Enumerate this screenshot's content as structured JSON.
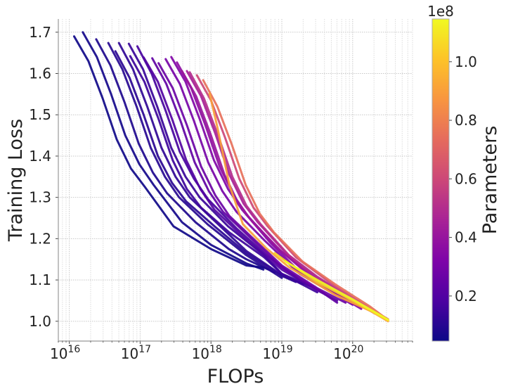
{
  "chart_data": {
    "type": "line",
    "title": "",
    "xlabel": "FLOPs",
    "ylabel": "Training Loss",
    "xscale": "log",
    "xlim": [
      7000000000000000.0,
      7e+20
    ],
    "ylim": [
      0.952,
      1.732
    ],
    "grid": true,
    "x_ticks": [
      {
        "value": 1e+16,
        "base": "10",
        "exp": "16"
      },
      {
        "value": 1e+17,
        "base": "10",
        "exp": "17"
      },
      {
        "value": 1e+18,
        "base": "10",
        "exp": "18"
      },
      {
        "value": 1e+19,
        "base": "10",
        "exp": "19"
      },
      {
        "value": 1e+20,
        "base": "10",
        "exp": "20"
      }
    ],
    "y_ticks": [
      "1.0",
      "1.1",
      "1.2",
      "1.3",
      "1.4",
      "1.5",
      "1.6",
      "1.7"
    ],
    "colorbar": {
      "label": "Parameters",
      "colormap": "plasma",
      "offset_text": "1e8",
      "range": [
        0.046,
        1.146
      ],
      "ticks": [
        "0.2",
        "0.4",
        "0.6",
        "0.8",
        "1.0"
      ],
      "colors": [
        "#0d0887",
        "#4c02a1",
        "#7e03a8",
        "#a82296",
        "#cc4778",
        "#e56b5d",
        "#f89540",
        "#fdc328",
        "#f0f921"
      ]
    },
    "series": [
      {
        "params_1e8": 0.05,
        "points": [
          [
            1.17e+16,
            1.69
          ],
          [
            1.86e+16,
            1.63
          ],
          [
            2.95e+16,
            1.54
          ],
          [
            4.68e+16,
            1.44
          ],
          [
            7.41e+16,
            1.37
          ],
          [
            1.17e+17,
            1.325
          ],
          [
            2.95e+17,
            1.23
          ],
          [
            1e+18,
            1.175
          ],
          [
            3.16e+18,
            1.135
          ],
          [
            5.6e+18,
            1.13
          ]
        ]
      },
      {
        "params_1e8": 0.06,
        "points": [
          [
            1.55e+16,
            1.7
          ],
          [
            2.45e+16,
            1.64
          ],
          [
            3.89e+16,
            1.55
          ],
          [
            6.17e+16,
            1.45
          ],
          [
            9.77e+16,
            1.38
          ],
          [
            1.55e+17,
            1.33
          ],
          [
            3.89e+17,
            1.24
          ],
          [
            1e+18,
            1.185
          ],
          [
            3.16e+18,
            1.14
          ],
          [
            5.5e+18,
            1.125
          ]
        ]
      },
      {
        "params_1e8": 0.08,
        "points": [
          [
            2.4e+16,
            1.683
          ],
          [
            3.8e+16,
            1.62
          ],
          [
            6.03e+16,
            1.53
          ],
          [
            9.55e+16,
            1.43
          ],
          [
            1.51e+17,
            1.36
          ],
          [
            2.4e+17,
            1.31
          ],
          [
            6.03e+17,
            1.24
          ],
          [
            1.78e+18,
            1.175
          ],
          [
            3.16e+18,
            1.15
          ],
          [
            7.94e+18,
            1.118
          ]
        ]
      },
      {
        "params_1e8": 0.1,
        "points": [
          [
            3.55e+16,
            1.674
          ],
          [
            5.62e+16,
            1.61
          ],
          [
            8.91e+16,
            1.52
          ],
          [
            1.41e+17,
            1.42
          ],
          [
            2.24e+17,
            1.35
          ],
          [
            3.55e+17,
            1.3
          ],
          [
            8.91e+17,
            1.235
          ],
          [
            3.16e+18,
            1.16
          ],
          [
            1e+19,
            1.105
          ]
        ]
      },
      {
        "params_1e8": 0.11,
        "points": [
          [
            4.47e+16,
            1.654
          ],
          [
            7.08e+16,
            1.59
          ],
          [
            1.12e+17,
            1.5
          ],
          [
            1.78e+17,
            1.4
          ],
          [
            2.82e+17,
            1.335
          ],
          [
            4.47e+17,
            1.29
          ],
          [
            1.12e+18,
            1.23
          ],
          [
            3.16e+18,
            1.165
          ],
          [
            1e+19,
            1.11
          ],
          [
            1.58e+19,
            1.095
          ]
        ]
      },
      {
        "params_1e8": 0.12,
        "points": [
          [
            5.01e+16,
            1.674
          ],
          [
            7.94e+16,
            1.61
          ],
          [
            1.26e+17,
            1.52
          ],
          [
            2e+17,
            1.42
          ],
          [
            3.16e+17,
            1.35
          ],
          [
            5.01e+17,
            1.3
          ],
          [
            1.26e+18,
            1.235
          ],
          [
            3.16e+18,
            1.17
          ],
          [
            1e+19,
            1.112
          ],
          [
            2e+19,
            1.09
          ]
        ]
      },
      {
        "params_1e8": 0.14,
        "points": [
          [
            6.92e+16,
            1.672
          ],
          [
            1.1e+17,
            1.61
          ],
          [
            1.74e+17,
            1.52
          ],
          [
            2.75e+17,
            1.42
          ],
          [
            4.37e+17,
            1.35
          ],
          [
            6.92e+17,
            1.3
          ],
          [
            1.74e+18,
            1.23
          ],
          [
            5.62e+18,
            1.16
          ],
          [
            1e+19,
            1.115
          ],
          [
            2.51e+19,
            1.085
          ]
        ]
      },
      {
        "params_1e8": 0.15,
        "points": [
          [
            7.24e+16,
            1.642
          ],
          [
            1.15e+17,
            1.58
          ],
          [
            1.82e+17,
            1.49
          ],
          [
            2.88e+17,
            1.39
          ],
          [
            4.57e+17,
            1.32
          ],
          [
            7.24e+17,
            1.275
          ],
          [
            1.82e+18,
            1.215
          ],
          [
            5.62e+18,
            1.155
          ],
          [
            1e+19,
            1.115
          ],
          [
            3.16e+19,
            1.07
          ]
        ]
      },
      {
        "params_1e8": 0.17,
        "points": [
          [
            9.12e+16,
            1.666
          ],
          [
            1.45e+17,
            1.6
          ],
          [
            2.29e+17,
            1.51
          ],
          [
            3.63e+17,
            1.41
          ],
          [
            5.75e+17,
            1.345
          ],
          [
            9.12e+17,
            1.295
          ],
          [
            2.29e+18,
            1.225
          ],
          [
            5.62e+18,
            1.165
          ],
          [
            1.78e+19,
            1.1
          ],
          [
            3.98e+19,
            1.068
          ]
        ]
      },
      {
        "params_1e8": 0.2,
        "points": [
          [
            1.12e+17,
            1.639
          ],
          [
            1.78e+17,
            1.58
          ],
          [
            2.82e+17,
            1.49
          ],
          [
            4.47e+17,
            1.39
          ],
          [
            7.08e+17,
            1.32
          ],
          [
            1.12e+18,
            1.27
          ],
          [
            2.82e+18,
            1.205
          ],
          [
            1e+19,
            1.125
          ],
          [
            3.16e+19,
            1.075
          ],
          [
            6.03e+19,
            1.05
          ]
        ]
      },
      {
        "params_1e8": 0.24,
        "points": [
          [
            1.48e+17,
            1.637
          ],
          [
            2.34e+17,
            1.575
          ],
          [
            3.72e+17,
            1.485
          ],
          [
            5.89e+17,
            1.385
          ],
          [
            9.33e+17,
            1.315
          ],
          [
            1.48e+18,
            1.265
          ],
          [
            3.72e+18,
            1.2
          ],
          [
            1e+19,
            1.13
          ],
          [
            3.16e+19,
            1.078
          ],
          [
            6.03e+19,
            1.045
          ]
        ]
      },
      {
        "params_1e8": 0.27,
        "points": [
          [
            1.82e+17,
            1.625
          ],
          [
            2.88e+17,
            1.565
          ],
          [
            4.57e+17,
            1.475
          ],
          [
            7.24e+17,
            1.375
          ],
          [
            1.15e+18,
            1.305
          ],
          [
            1.82e+18,
            1.255
          ],
          [
            4.57e+18,
            1.19
          ],
          [
            1e+19,
            1.135
          ],
          [
            3.16e+19,
            1.08
          ],
          [
            7.94e+19,
            1.045
          ]
        ]
      },
      {
        "params_1e8": 0.3,
        "points": [
          [
            2.29e+17,
            1.635
          ],
          [
            3.63e+17,
            1.575
          ],
          [
            5.75e+17,
            1.485
          ],
          [
            9.12e+17,
            1.385
          ],
          [
            1.45e+18,
            1.315
          ],
          [
            2.29e+18,
            1.265
          ],
          [
            5.75e+18,
            1.195
          ],
          [
            1.78e+19,
            1.115
          ],
          [
            5.62e+19,
            1.065
          ],
          [
            1e+20,
            1.04
          ]
        ]
      },
      {
        "params_1e8": 0.33,
        "points": [
          [
            2.75e+17,
            1.64
          ],
          [
            4.37e+17,
            1.58
          ],
          [
            6.92e+17,
            1.49
          ],
          [
            1.1e+18,
            1.39
          ],
          [
            1.74e+18,
            1.32
          ],
          [
            2.75e+18,
            1.27
          ],
          [
            6.92e+18,
            1.19
          ],
          [
            1.78e+19,
            1.12
          ],
          [
            5.62e+19,
            1.068
          ],
          [
            1.32e+20,
            1.03
          ]
        ]
      },
      {
        "params_1e8": 0.37,
        "points": [
          [
            3.31e+17,
            1.627
          ],
          [
            5.25e+17,
            1.565
          ],
          [
            8.32e+17,
            1.475
          ],
          [
            1.32e+18,
            1.375
          ],
          [
            2.09e+18,
            1.305
          ],
          [
            3.31e+18,
            1.255
          ],
          [
            8.32e+18,
            1.18
          ],
          [
            3.16e+19,
            1.095
          ],
          [
            1e+20,
            1.045
          ],
          [
            1.32e+20,
            1.035
          ]
        ]
      },
      {
        "params_1e8": 0.41,
        "points": [
          [
            3.89e+17,
            1.606
          ],
          [
            6.17e+17,
            1.545
          ],
          [
            9.77e+17,
            1.455
          ],
          [
            1.55e+18,
            1.355
          ],
          [
            2.45e+18,
            1.285
          ],
          [
            3.89e+18,
            1.24
          ],
          [
            9.77e+18,
            1.17
          ],
          [
            3.16e+19,
            1.1
          ],
          [
            1e+20,
            1.048
          ],
          [
            1.58e+20,
            1.03
          ]
        ]
      },
      {
        "params_1e8": 0.45,
        "points": [
          [
            4.57e+17,
            1.606
          ],
          [
            7.24e+17,
            1.545
          ],
          [
            1.15e+18,
            1.455
          ],
          [
            1.82e+18,
            1.355
          ],
          [
            2.88e+18,
            1.285
          ],
          [
            4.57e+18,
            1.24
          ],
          [
            1.15e+19,
            1.165
          ],
          [
            3.16e+19,
            1.105
          ],
          [
            1e+20,
            1.05
          ],
          [
            2e+20,
            1.02
          ]
        ]
      },
      {
        "params_1e8": 0.5,
        "points": [
          [
            5.01e+17,
            1.603
          ],
          [
            7.94e+17,
            1.54
          ],
          [
            1.26e+18,
            1.45
          ],
          [
            2e+18,
            1.35
          ],
          [
            3.16e+18,
            1.28
          ],
          [
            5.01e+18,
            1.235
          ],
          [
            1.26e+19,
            1.16
          ],
          [
            3.16e+19,
            1.108
          ],
          [
            1e+20,
            1.053
          ],
          [
            2.51e+20,
            1.012
          ]
        ]
      },
      {
        "params_1e8": 0.6,
        "points": [
          [
            6.31e+17,
            1.596
          ],
          [
            1e+18,
            1.535
          ],
          [
            1.58e+18,
            1.445
          ],
          [
            2.51e+18,
            1.345
          ],
          [
            3.98e+18,
            1.275
          ],
          [
            6.31e+18,
            1.23
          ],
          [
            1.58e+19,
            1.155
          ],
          [
            5.62e+19,
            1.085
          ],
          [
            1.78e+20,
            1.03
          ],
          [
            3.16e+20,
            1.005
          ]
        ]
      },
      {
        "params_1e8": 0.75,
        "points": [
          [
            7.76e+17,
            1.584
          ],
          [
            1.23e+18,
            1.52
          ],
          [
            1.95e+18,
            1.43
          ],
          [
            3.09e+18,
            1.33
          ],
          [
            4.9e+18,
            1.26
          ],
          [
            7.76e+18,
            1.215
          ],
          [
            1.95e+19,
            1.145
          ],
          [
            5.62e+19,
            1.09
          ],
          [
            1.78e+20,
            1.035
          ],
          [
            3.16e+20,
            1.003
          ]
        ]
      },
      {
        "params_1e8": 0.9,
        "points": [
          [
            9.55e+17,
            1.552
          ],
          [
            1.23e+18,
            1.47
          ],
          [
            1.82e+18,
            1.33
          ],
          [
            2.82e+18,
            1.235
          ],
          [
            6.03e+18,
            1.177
          ],
          [
            1.26e+19,
            1.131
          ],
          [
            5.75e+19,
            1.063
          ],
          [
            1.78e+20,
            1.025
          ],
          [
            3.16e+20,
            1.0
          ]
        ]
      },
      {
        "params_1e8": 1.05,
        "points": [
          [
            7.94e+18,
            1.165
          ],
          [
            1.26e+19,
            1.14
          ],
          [
            3.16e+19,
            1.095
          ],
          [
            1e+20,
            1.05
          ],
          [
            3.16e+20,
            1.002
          ]
        ]
      },
      {
        "params_1e8": 1.15,
        "points": [
          [
            1.12e+19,
            1.145
          ],
          [
            3.16e+19,
            1.1
          ],
          [
            1e+20,
            1.053
          ],
          [
            3.16e+20,
            1.004
          ]
        ]
      }
    ]
  }
}
